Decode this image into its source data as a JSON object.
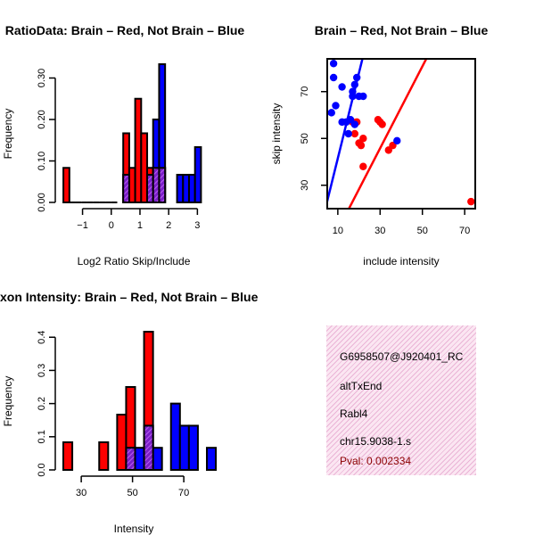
{
  "colors": {
    "red": "#ff0000",
    "blue": "#0000ff",
    "purple": "#a020f0",
    "info_bg": "#fbe6f2",
    "pval": "#8b0000"
  },
  "chart_data": [
    {
      "type": "bar",
      "id": "ratio-hist",
      "title": "RatioData: Brain – Red, Not Brain – Blue",
      "xlabel": "Log2 Ratio Skip/Include",
      "ylabel": "Frequency",
      "xlim": [
        -1.67,
        3.33
      ],
      "ylim": [
        0,
        0.3333
      ],
      "xticks": [
        -1,
        0,
        1,
        2,
        3
      ],
      "yticks": [
        0.0,
        0.1,
        0.2,
        0.3
      ],
      "ytick_labels": [
        "0.00",
        "0.10",
        "0.20",
        "0.30"
      ],
      "bin_width": 0.2083,
      "series": [
        {
          "name": "Brain",
          "color": "red",
          "bins": [
            {
              "x0": -1.667,
              "x1": -1.458,
              "y": 0.0833
            },
            {
              "x0": -1.458,
              "x1": -1.25,
              "y": 0
            },
            {
              "x0": -1.25,
              "x1": -1.042,
              "y": 0
            },
            {
              "x0": -1.042,
              "x1": -0.833,
              "y": 0
            },
            {
              "x0": -0.833,
              "x1": -0.625,
              "y": 0
            },
            {
              "x0": -0.625,
              "x1": -0.417,
              "y": 0
            },
            {
              "x0": -0.417,
              "x1": -0.208,
              "y": 0
            },
            {
              "x0": -0.208,
              "x1": 0.0,
              "y": 0
            },
            {
              "x0": 0.0,
              "x1": 0.208,
              "y": 0
            },
            {
              "x0": 0.417,
              "x1": 0.625,
              "y": 0.1667
            },
            {
              "x0": 0.625,
              "x1": 0.833,
              "y": 0.0833
            },
            {
              "x0": 0.833,
              "x1": 1.042,
              "y": 0.25
            },
            {
              "x0": 1.042,
              "x1": 1.25,
              "y": 0.1667
            },
            {
              "x0": 1.25,
              "x1": 1.458,
              "y": 0.0833
            },
            {
              "x0": 1.458,
              "x1": 1.667,
              "y": 0.0833
            },
            {
              "x0": 1.667,
              "x1": 1.875,
              "y": 0.0833
            }
          ]
        },
        {
          "name": "Not Brain",
          "color": "blue",
          "bins": [
            {
              "x0": 0.417,
              "x1": 0.625,
              "y": 0.0667
            },
            {
              "x0": 1.25,
              "x1": 1.458,
              "y": 0.0667
            },
            {
              "x0": 1.458,
              "x1": 1.667,
              "y": 0.2
            },
            {
              "x0": 1.667,
              "x1": 1.875,
              "y": 0.3333
            },
            {
              "x0": 2.292,
              "x1": 2.5,
              "y": 0.0667
            },
            {
              "x0": 2.5,
              "x1": 2.708,
              "y": 0.0667
            },
            {
              "x0": 2.708,
              "x1": 2.917,
              "y": 0.0667
            },
            {
              "x0": 2.917,
              "x1": 3.125,
              "y": 0.1333
            }
          ]
        }
      ]
    },
    {
      "type": "scatter",
      "id": "intensity-scatter",
      "title": "Brain – Red, Not Brain – Blue",
      "xlabel": "include intensity",
      "ylabel": "skip intensity",
      "xlim": [
        5,
        75
      ],
      "ylim": [
        20,
        84
      ],
      "xticks": [
        10,
        30,
        50,
        70
      ],
      "yticks": [
        30,
        50,
        70
      ],
      "series": [
        {
          "name": "Brain",
          "color": "red",
          "points": [
            [
              17,
              57
            ],
            [
              19,
              57
            ],
            [
              18,
              52
            ],
            [
              20,
              48
            ],
            [
              21,
              47
            ],
            [
              22,
              50
            ],
            [
              22,
              38
            ],
            [
              29,
              58
            ],
            [
              30,
              57
            ],
            [
              31,
              56
            ],
            [
              34,
              45
            ],
            [
              36,
              47
            ],
            [
              73,
              23
            ]
          ],
          "fit": {
            "intercept": -6.7,
            "slope": 1.75
          }
        },
        {
          "name": "Not Brain",
          "color": "blue",
          "points": [
            [
              8,
              82
            ],
            [
              8,
              76
            ],
            [
              9,
              64
            ],
            [
              7,
              61
            ],
            [
              12,
              72
            ],
            [
              12,
              57
            ],
            [
              14,
              57
            ],
            [
              15,
              52
            ],
            [
              16,
              58
            ],
            [
              17,
              70
            ],
            [
              17,
              68
            ],
            [
              18,
              73
            ],
            [
              19,
              76
            ],
            [
              20,
              68
            ],
            [
              22,
              68
            ],
            [
              18,
              56
            ],
            [
              38,
              49
            ]
          ],
          "fit": {
            "intercept": 5,
            "slope": 3.65
          }
        }
      ]
    },
    {
      "type": "bar",
      "id": "intensity-hist",
      "title": "Exon Intensity: Brain – Red, Not Brain – Blue",
      "xlabel": "Intensity",
      "ylabel": "Frequency",
      "xlim": [
        23,
        79
      ],
      "ylim": [
        0,
        0.4167
      ],
      "xticks": [
        30,
        50,
        70
      ],
      "yticks": [
        0.0,
        0.1,
        0.2,
        0.3,
        0.4
      ],
      "ytick_labels": [
        "0.0",
        "0.1",
        "0.2",
        "0.3",
        "0.4"
      ],
      "bin_width": 3.5,
      "series": [
        {
          "name": "Brain",
          "color": "red",
          "bins": [
            {
              "x0": 23.0,
              "x1": 26.5,
              "y": 0.0833
            },
            {
              "x0": 37.0,
              "x1": 40.5,
              "y": 0.0833
            },
            {
              "x0": 44.0,
              "x1": 47.5,
              "y": 0.1667
            },
            {
              "x0": 47.5,
              "x1": 51.0,
              "y": 0.25
            },
            {
              "x0": 54.5,
              "x1": 58.0,
              "y": 0.4167
            }
          ]
        },
        {
          "name": "Not Brain",
          "color": "blue",
          "bins": [
            {
              "x0": 47.5,
              "x1": 51.0,
              "y": 0.0667
            },
            {
              "x0": 51.0,
              "x1": 54.5,
              "y": 0.0667
            },
            {
              "x0": 54.5,
              "x1": 58.0,
              "y": 0.1333
            },
            {
              "x0": 58.0,
              "x1": 61.5,
              "y": 0.0667
            },
            {
              "x0": 65.0,
              "x1": 68.5,
              "y": 0.2
            },
            {
              "x0": 68.5,
              "x1": 72.0,
              "y": 0.1333
            },
            {
              "x0": 72.0,
              "x1": 75.5,
              "y": 0.1333
            },
            {
              "x0": 79.0,
              "x1": 82.5,
              "y": 0.0667
            }
          ]
        }
      ]
    }
  ],
  "info": {
    "probe_id": "G6958507@J920401_RC",
    "event_type": "altTxEnd",
    "gene": "Rabl4",
    "exon": "chr15.9038-1.s",
    "pval": "Pval: 0.002334"
  }
}
